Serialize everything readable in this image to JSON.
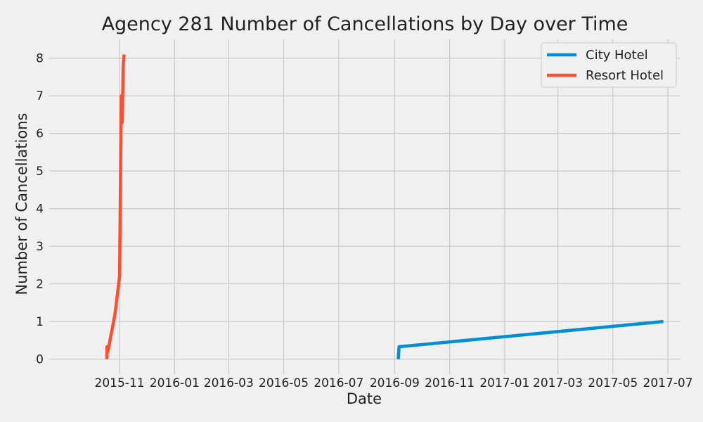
{
  "chart_data": {
    "type": "line",
    "title": "Agency 281 Number of Cancellations by Day over Time",
    "xlabel": "Date",
    "ylabel": "Number of Cancellations",
    "x_axis_type": "date",
    "xlim": [
      "2015-08-15",
      "2017-07-15"
    ],
    "ylim": [
      -0.4,
      8.5
    ],
    "x_ticks": [
      "2015-11",
      "2016-01",
      "2016-03",
      "2016-05",
      "2016-07",
      "2016-09",
      "2016-11",
      "2017-01",
      "2017-03",
      "2017-05",
      "2017-07"
    ],
    "y_ticks": [
      0,
      1,
      2,
      3,
      4,
      5,
      6,
      7,
      8
    ],
    "grid": true,
    "legend_position": "top-right",
    "series": [
      {
        "name": "City Hotel",
        "color": "#008fd5",
        "points": [
          {
            "x": "2016-09-05",
            "y": 0
          },
          {
            "x": "2016-09-06",
            "y": 0.33
          },
          {
            "x": "2017-06-26",
            "y": 1.0
          }
        ]
      },
      {
        "name": "Resort Hotel",
        "color": "#fc4f30",
        "points": [
          {
            "x": "2015-10-18",
            "y": 0
          },
          {
            "x": "2015-10-18",
            "y": 0.33
          },
          {
            "x": "2015-10-19",
            "y": 0.2
          },
          {
            "x": "2015-10-27",
            "y": 1.2
          },
          {
            "x": "2015-11-01",
            "y": 2.2
          },
          {
            "x": "2015-11-03",
            "y": 7.0
          },
          {
            "x": "2015-11-04",
            "y": 6.3
          },
          {
            "x": "2015-11-05",
            "y": 7.8
          },
          {
            "x": "2015-11-06",
            "y": 8.1
          }
        ]
      }
    ]
  }
}
